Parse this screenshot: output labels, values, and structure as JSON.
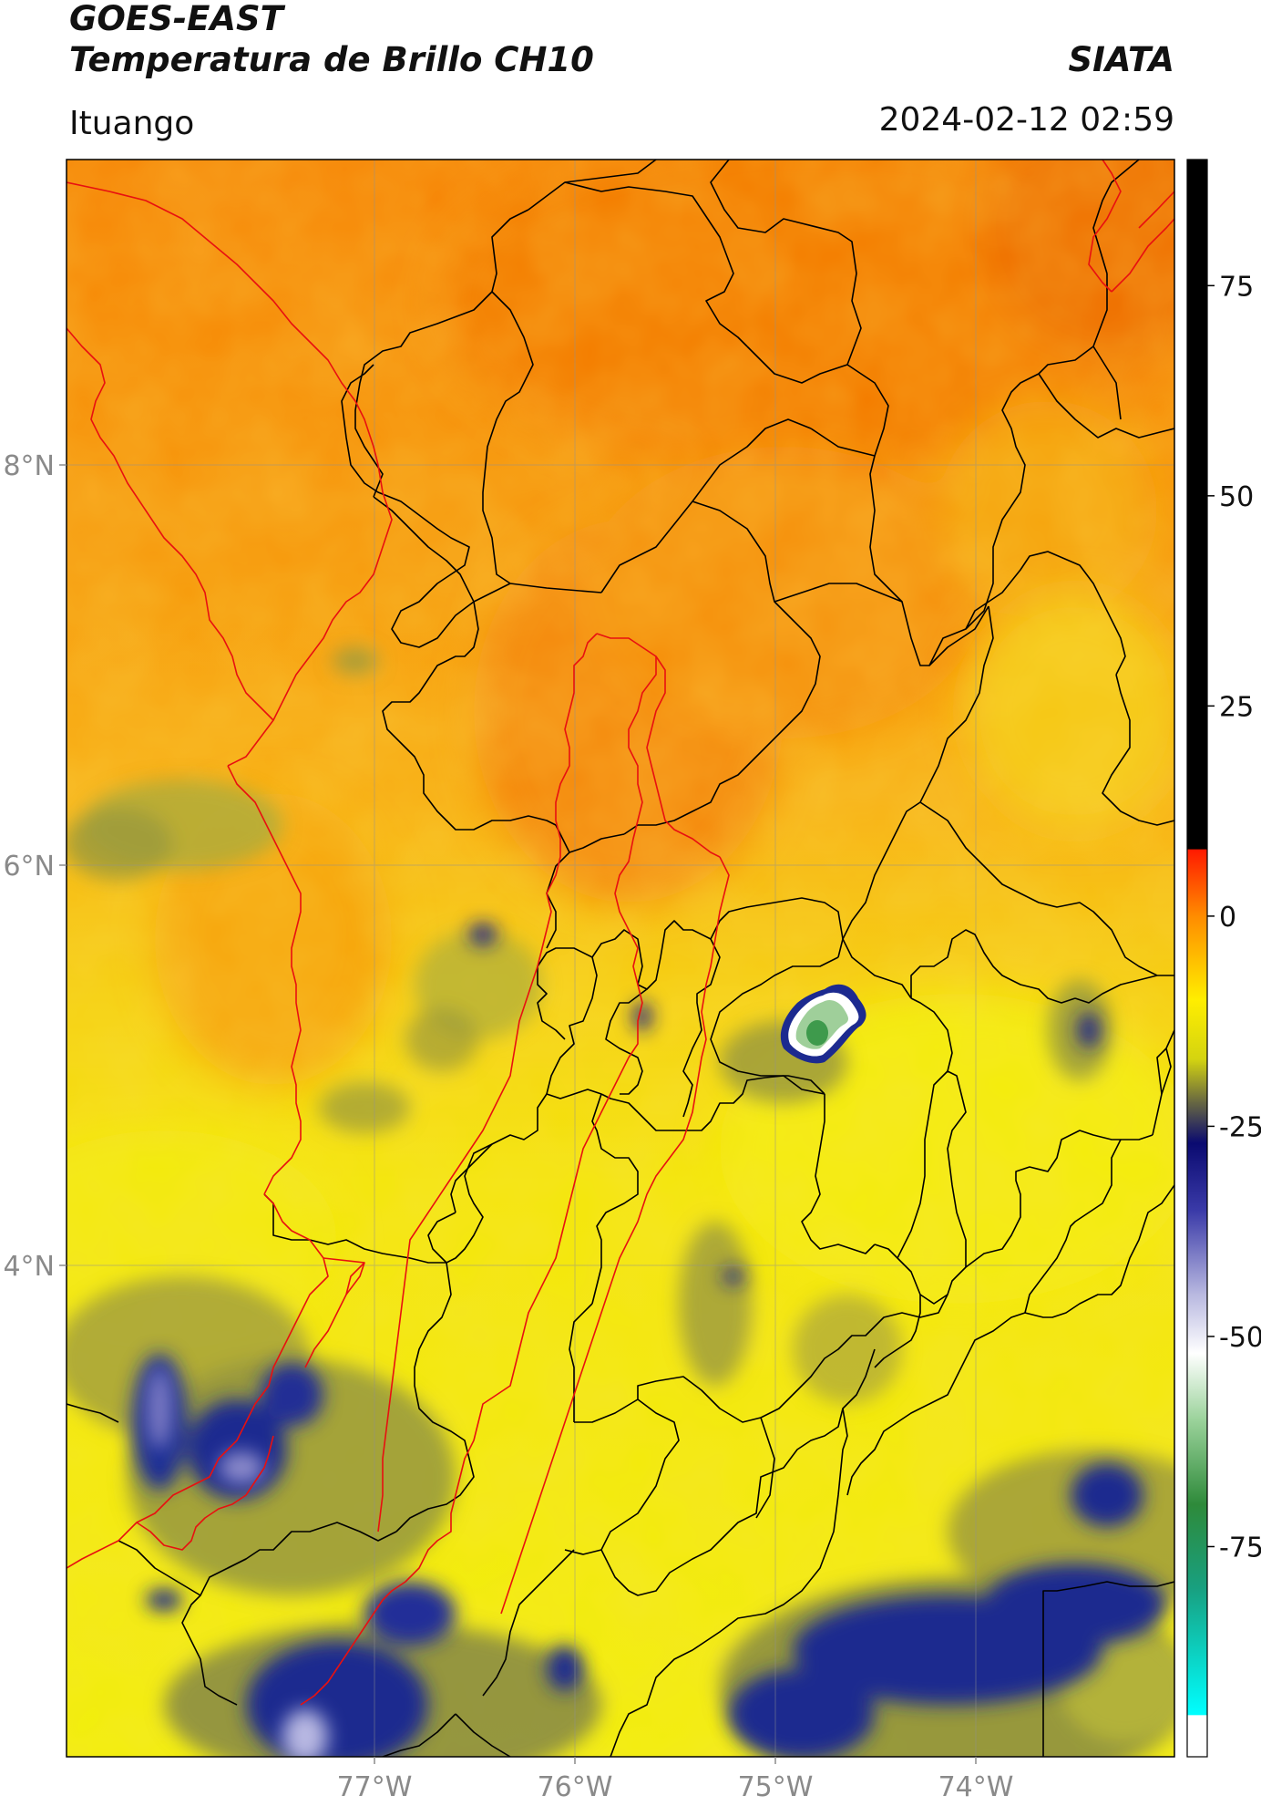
{
  "header": {
    "satellite": "GOES-EAST",
    "product": "Temperatura de Brillo CH10",
    "organization": "SIATA",
    "location": "Ituango",
    "datetime": "2024-02-12 02:59"
  },
  "map": {
    "latitude_ticks": [
      "8°N",
      "6°N",
      "4°N"
    ],
    "longitude_ticks": [
      "77°W",
      "76°W",
      "75°W",
      "74°W"
    ],
    "lon_range": [
      -78.5,
      -73.0
    ],
    "lat_range": [
      1.0,
      9.5
    ],
    "colors": {
      "ocean_warm": "#f78a0a",
      "land_warm": "#f9ae12",
      "yellow": "#f4ef0c",
      "olive": "#8f9a35",
      "navy": "#1c2a8f",
      "border_department": "#000000",
      "border_region": "#e81010"
    }
  },
  "colorbar": {
    "tick_labels": [
      "75",
      "50",
      "25",
      "0",
      "-25",
      "-50",
      "-75"
    ],
    "tick_values": [
      75,
      50,
      25,
      0,
      -25,
      -50,
      -75
    ],
    "range": [
      -100,
      90
    ],
    "stops": [
      {
        "v": 90,
        "c": "#000000"
      },
      {
        "v": 8,
        "c": "#000000"
      },
      {
        "v": 7.9,
        "c": "#ff1a00"
      },
      {
        "v": 0,
        "c": "#ff8c00"
      },
      {
        "v": -10,
        "c": "#ffee00"
      },
      {
        "v": -17,
        "c": "#d4d410"
      },
      {
        "v": -22,
        "c": "#6a6a40"
      },
      {
        "v": -27,
        "c": "#0a0a70"
      },
      {
        "v": -35,
        "c": "#3a3aa8"
      },
      {
        "v": -45,
        "c": "#b8b8e0"
      },
      {
        "v": -52,
        "c": "#ffffff"
      },
      {
        "v": -60,
        "c": "#9ad29a"
      },
      {
        "v": -70,
        "c": "#2e8a3a"
      },
      {
        "v": -80,
        "c": "#18a080"
      },
      {
        "v": -95,
        "c": "#00ffff"
      },
      {
        "v": -95.1,
        "c": "#ffffff"
      },
      {
        "v": -100,
        "c": "#ffffff"
      }
    ]
  }
}
